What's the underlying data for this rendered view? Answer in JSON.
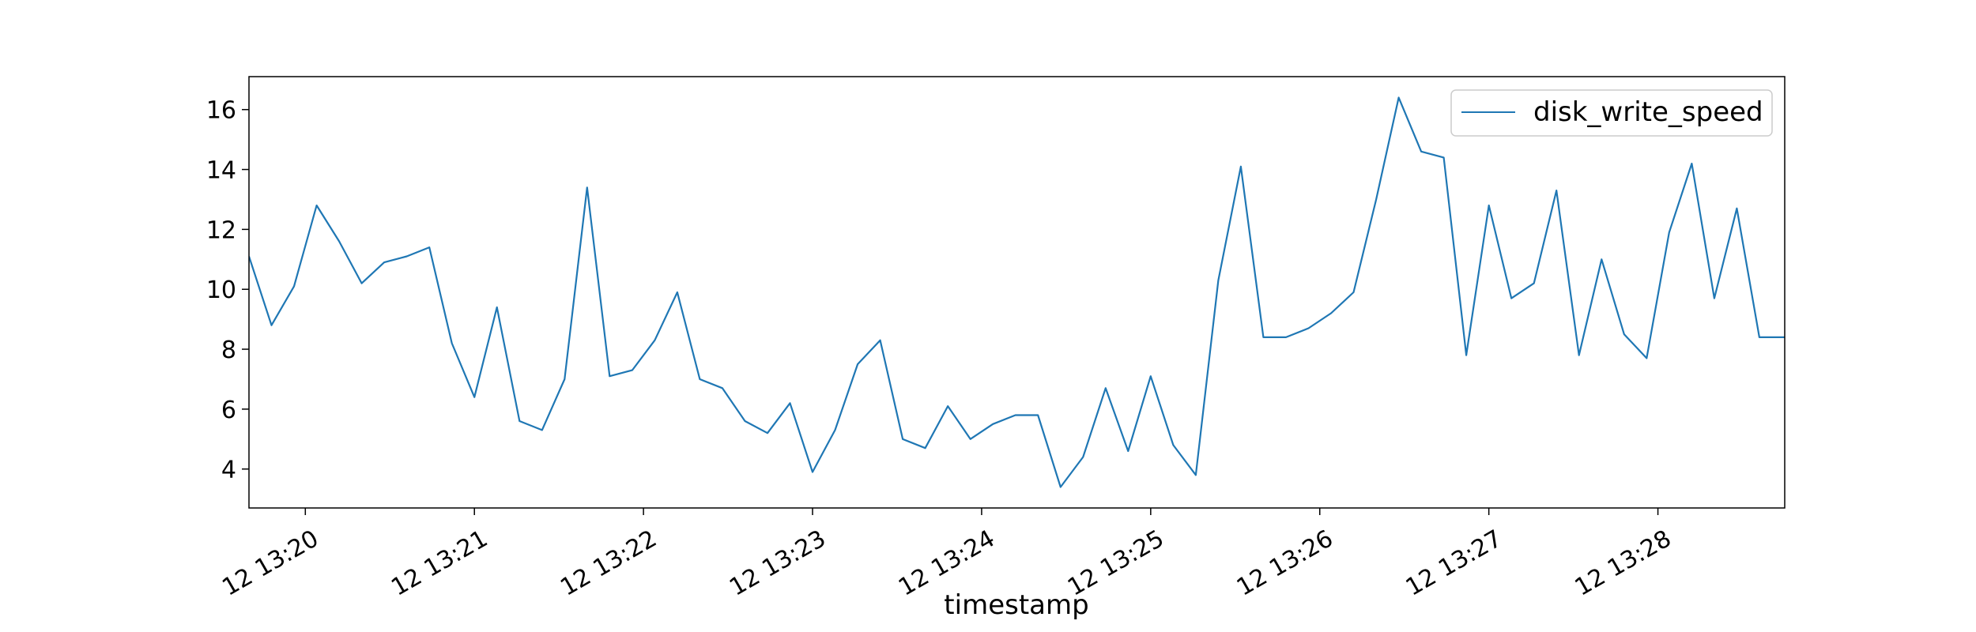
{
  "chart_data": {
    "type": "line",
    "title": "",
    "xlabel": "timestamp",
    "ylabel": "",
    "x_tick_labels": [
      "12 13:20",
      "12 13:21",
      "12 13:22",
      "12 13:23",
      "12 13:24",
      "12 13:25",
      "12 13:26",
      "12 13:27",
      "12 13:28"
    ],
    "y_ticks": [
      4,
      6,
      8,
      10,
      12,
      14,
      16
    ],
    "xlim": [
      "13:19:40",
      "13:28:45"
    ],
    "ylim": [
      2.7,
      17.1
    ],
    "grid": false,
    "legend": {
      "position": "top-right",
      "entries": [
        "disk_write_speed"
      ]
    },
    "series": [
      {
        "name": "disk_write_speed",
        "color": "#1f77b4",
        "x": [
          "13:19:40",
          "13:19:48",
          "13:19:56",
          "13:20:04",
          "13:20:12",
          "13:20:20",
          "13:20:28",
          "13:20:36",
          "13:20:44",
          "13:20:52",
          "13:21:00",
          "13:21:08",
          "13:21:16",
          "13:21:24",
          "13:21:32",
          "13:21:40",
          "13:21:48",
          "13:21:56",
          "13:22:04",
          "13:22:12",
          "13:22:20",
          "13:22:28",
          "13:22:36",
          "13:22:44",
          "13:22:52",
          "13:23:00",
          "13:23:08",
          "13:23:16",
          "13:23:24",
          "13:23:32",
          "13:23:40",
          "13:23:48",
          "13:23:56",
          "13:24:04",
          "13:24:12",
          "13:24:20",
          "13:24:28",
          "13:24:36",
          "13:24:44",
          "13:24:52",
          "13:25:00",
          "13:25:08",
          "13:25:16",
          "13:25:24",
          "13:25:32",
          "13:25:40",
          "13:25:48",
          "13:25:56",
          "13:26:04",
          "13:26:12",
          "13:26:20",
          "13:26:28",
          "13:26:36",
          "13:26:44",
          "13:26:52",
          "13:27:00",
          "13:27:08",
          "13:27:16",
          "13:27:24",
          "13:27:32",
          "13:27:40",
          "13:27:48",
          "13:27:56",
          "13:28:04",
          "13:28:12",
          "13:28:20",
          "13:28:28",
          "13:28:36",
          "13:28:45"
        ],
        "values": [
          11.1,
          8.8,
          10.1,
          12.8,
          11.6,
          10.2,
          10.9,
          11.1,
          11.4,
          8.2,
          6.4,
          9.4,
          5.6,
          5.3,
          7.0,
          13.4,
          7.1,
          7.3,
          8.3,
          9.9,
          7.0,
          6.7,
          5.6,
          5.2,
          6.2,
          3.9,
          5.3,
          7.5,
          8.3,
          5.0,
          4.7,
          6.1,
          5.0,
          5.5,
          5.8,
          5.8,
          3.4,
          4.4,
          6.7,
          4.6,
          7.1,
          4.8,
          3.8,
          10.3,
          14.1,
          8.4,
          8.4,
          8.7,
          9.2,
          9.9,
          13.0,
          16.4,
          14.6,
          14.4,
          7.8,
          12.8,
          9.7,
          10.2,
          13.3,
          7.8,
          11.0,
          8.5,
          7.7,
          11.9,
          14.2,
          9.7,
          12.7,
          8.4,
          8.4
        ]
      }
    ]
  }
}
